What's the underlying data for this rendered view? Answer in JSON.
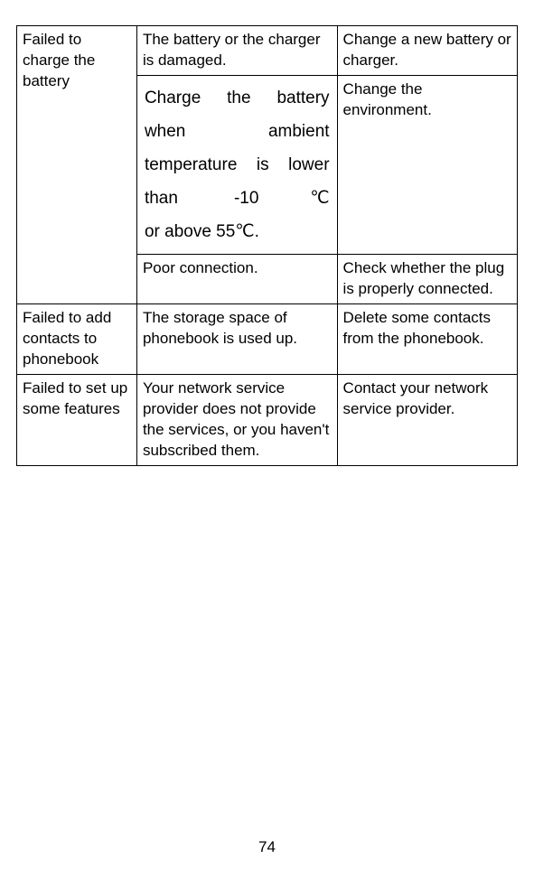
{
  "table": {
    "border_color": "#000000",
    "background_color": "#ffffff",
    "text_color": "#000000",
    "font_family": "Century Gothic",
    "body_fontsize_pt": 12,
    "emphasis_fontsize_pt": 14,
    "column_widths_pct": [
      24,
      40,
      36
    ],
    "rows": [
      {
        "problem": "Failed to charge the battery",
        "problem_rowspan": 3,
        "cause": "The battery or the charger is damaged.",
        "solution": "Change a new battery or charger."
      },
      {
        "cause": "Charge the battery when ambient temperature is lower than -10℃",
        "cause_lastline": "or above 55℃.",
        "cause_justified": true,
        "solution": "Change the environment."
      },
      {
        "cause": "Poor connection.",
        "solution": "Check whether the plug is properly connected."
      },
      {
        "problem": "Failed to add contacts to phonebook",
        "cause": "The storage space of phonebook is used up.",
        "solution": "Delete some contacts from the phonebook."
      },
      {
        "problem": "Failed to set up some features",
        "cause": "Your network service provider does not provide the services, or you haven't subscribed them.",
        "solution": "Contact your network service provider."
      }
    ]
  },
  "page_number": "74"
}
